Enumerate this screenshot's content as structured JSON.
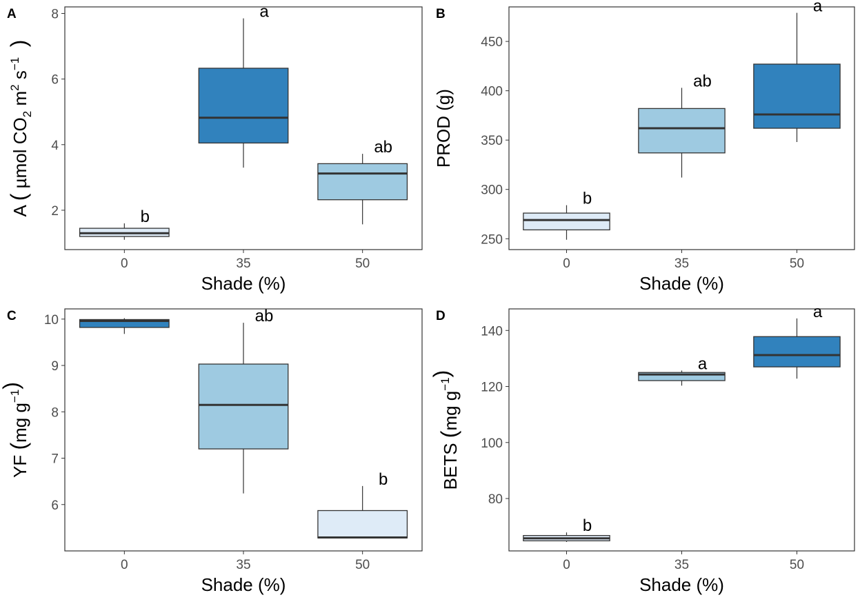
{
  "colors": {
    "light": "#deebf7",
    "medium": "#9ecae1",
    "dark": "#3182bd",
    "outline": "#333333",
    "panel_border": "#333333",
    "tick_text": "#4d4d4d"
  },
  "chart_data": [
    {
      "panel": "A",
      "type": "box",
      "categories": [
        "0",
        "35",
        "50"
      ],
      "xlabel": "Shade (%)",
      "ylabel": {
        "main": "A",
        "open": "(",
        "unit_a": "µmol CO",
        "sub": "2",
        "unit_b": "m",
        "sup1": "2",
        "unit_c": "s",
        "sup2": "−1",
        "close": ")"
      },
      "ylim": [
        0.8,
        8.2
      ],
      "yticks": [
        2,
        4,
        6,
        8
      ],
      "boxes": [
        {
          "category": "0",
          "min": 1.1,
          "q1": 1.2,
          "median": 1.3,
          "q3": 1.45,
          "max": 1.6,
          "fill": "light",
          "label": "b"
        },
        {
          "category": "35",
          "min": 3.3,
          "q1": 4.05,
          "median": 4.82,
          "q3": 6.33,
          "max": 7.85,
          "fill": "dark",
          "label": "a"
        },
        {
          "category": "50",
          "min": 1.57,
          "q1": 2.32,
          "median": 3.12,
          "q3": 3.42,
          "max": 3.72,
          "fill": "medium",
          "label": "ab"
        }
      ]
    },
    {
      "panel": "B",
      "type": "box",
      "categories": [
        "0",
        "35",
        "50"
      ],
      "xlabel": "Shade (%)",
      "ylabel": {
        "main": "PROD (g)"
      },
      "ylim": [
        239,
        485
      ],
      "yticks": [
        250,
        300,
        350,
        400,
        450
      ],
      "boxes": [
        {
          "category": "0",
          "min": 249,
          "q1": 259,
          "median": 269,
          "q3": 276,
          "max": 284,
          "fill": "light",
          "label": "b"
        },
        {
          "category": "35",
          "min": 312,
          "q1": 337,
          "median": 362,
          "q3": 382,
          "max": 403,
          "fill": "medium",
          "label": "ab"
        },
        {
          "category": "50",
          "min": 348,
          "q1": 362,
          "median": 376,
          "q3": 427,
          "max": 479,
          "fill": "dark",
          "label": "a"
        }
      ]
    },
    {
      "panel": "C",
      "type": "box",
      "categories": [
        "0",
        "35",
        "50"
      ],
      "xlabel": "Shade (%)",
      "ylabel": {
        "main": "YF",
        "open": "(",
        "unit_a": "mg g",
        "sup1": "−1",
        "close": ")"
      },
      "ylim": [
        5.0,
        10.22
      ],
      "yticks": [
        6,
        7,
        8,
        9,
        10
      ],
      "boxes": [
        {
          "category": "0",
          "min": 9.68,
          "q1": 9.82,
          "median": 9.96,
          "q3": 9.99,
          "max": 10.02,
          "fill": "dark",
          "label": ""
        },
        {
          "category": "35",
          "min": 6.24,
          "q1": 7.2,
          "median": 8.15,
          "q3": 9.03,
          "max": 9.92,
          "fill": "medium",
          "label": "ab"
        },
        {
          "category": "50",
          "min": 5.28,
          "q1": 5.28,
          "median": 5.29,
          "q3": 5.87,
          "max": 6.4,
          "fill": "light",
          "label": "b"
        }
      ]
    },
    {
      "panel": "D",
      "type": "box",
      "categories": [
        "0",
        "35",
        "50"
      ],
      "xlabel": "Shade (%)",
      "ylabel": {
        "main": "BETS",
        "open": "(",
        "unit_a": "mg g",
        "sup1": "−1",
        "close": ")"
      },
      "ylim": [
        61.3,
        147.7
      ],
      "yticks": [
        80,
        100,
        120,
        140
      ],
      "boxes": [
        {
          "category": "0",
          "min": 64.5,
          "q1": 64.9,
          "median": 65.8,
          "q3": 66.8,
          "max": 67.9,
          "fill": "light",
          "label": "b"
        },
        {
          "category": "35",
          "min": 120.3,
          "q1": 122.1,
          "median": 124.3,
          "q3": 125.0,
          "max": 125.7,
          "fill": "medium",
          "label": "a"
        },
        {
          "category": "50",
          "min": 122.8,
          "q1": 127.0,
          "median": 131.2,
          "q3": 137.8,
          "max": 144.3,
          "fill": "dark",
          "label": "a"
        }
      ]
    }
  ]
}
